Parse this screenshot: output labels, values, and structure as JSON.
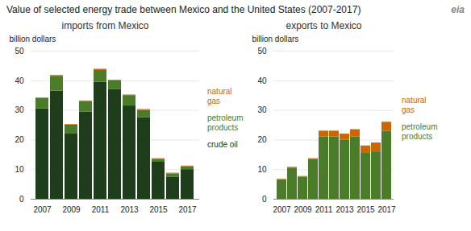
{
  "title": "Value of selected energy trade between Mexico and the United States (2007-2017)",
  "annotations": [
    "eia"
  ],
  "chart_data": [
    {
      "type": "bar",
      "stacked": true,
      "subtitle": "imports from Mexico",
      "ylabel": "billion dollars",
      "categories": [
        2007,
        2008,
        2009,
        2010,
        2011,
        2012,
        2013,
        2014,
        2015,
        2016,
        2017
      ],
      "xticks": [
        2007,
        2009,
        2011,
        2013,
        2015,
        2017
      ],
      "series": [
        {
          "name": "crude oil",
          "color": "#1e3d1a",
          "values": [
            30.5,
            36.5,
            22.0,
            29.5,
            39.5,
            37.0,
            31.5,
            27.5,
            12.5,
            7.5,
            10.0
          ]
        },
        {
          "name": "petroleum\nproducts",
          "color": "#4a7c2a",
          "values": [
            3.5,
            5.0,
            3.0,
            3.5,
            4.0,
            3.0,
            3.5,
            2.5,
            1.0,
            1.0,
            1.0
          ]
        },
        {
          "name": "natural\ngas",
          "color": "#cc6600",
          "values": [
            0.2,
            0.3,
            0.2,
            0.2,
            0.4,
            0.2,
            0.2,
            0.3,
            0.2,
            0.3,
            0.2
          ]
        }
      ],
      "ylim": [
        0,
        50
      ],
      "yticks": [
        0,
        10,
        20,
        30,
        40,
        50
      ],
      "grid": true,
      "legend": "right"
    },
    {
      "type": "bar",
      "stacked": true,
      "subtitle": "exports to Mexico",
      "ylabel": "billion dollars",
      "categories": [
        2007,
        2008,
        2009,
        2010,
        2011,
        2012,
        2013,
        2014,
        2015,
        2016,
        2017
      ],
      "xticks": [
        2007,
        2009,
        2011,
        2013,
        2015,
        2017
      ],
      "series": [
        {
          "name": "petroleum\nproducts",
          "color": "#4a7c2a",
          "values": [
            6.5,
            10.5,
            7.5,
            13.5,
            21.0,
            21.0,
            20.0,
            21.0,
            15.5,
            16.0,
            23.0
          ]
        },
        {
          "name": "natural\ngas",
          "color": "#cc6600",
          "values": [
            0.2,
            0.3,
            0.2,
            0.2,
            2.0,
            2.0,
            2.0,
            2.5,
            2.5,
            3.0,
            3.0
          ]
        }
      ],
      "ylim": [
        0,
        50
      ],
      "yticks": [
        0,
        10,
        20,
        30,
        40,
        50
      ],
      "grid": true,
      "legend": "right"
    }
  ]
}
